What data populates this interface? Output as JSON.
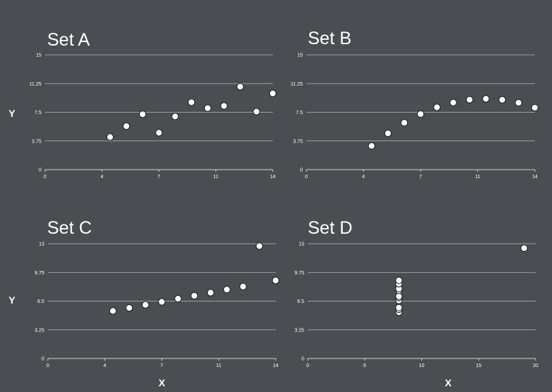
{
  "chart_data": [
    {
      "type": "scatter",
      "title": "Set A",
      "ylabel": "Y",
      "xlabel": "",
      "xlim": [
        0,
        14
      ],
      "ylim": [
        0,
        15
      ],
      "xticks": [
        "0",
        "4",
        "7",
        "11",
        "14"
      ],
      "xtick_values": [
        0,
        3.5,
        7,
        10.5,
        14
      ],
      "yticks": [
        "0",
        "3.75",
        "7.5",
        "11.25",
        "15"
      ],
      "ytick_values": [
        0,
        3.75,
        7.5,
        11.25,
        15
      ],
      "grid": true,
      "points": [
        [
          4,
          4.26
        ],
        [
          5,
          5.68
        ],
        [
          6,
          7.24
        ],
        [
          7,
          4.82
        ],
        [
          8,
          6.95
        ],
        [
          9,
          8.81
        ],
        [
          10,
          8.04
        ],
        [
          11,
          8.33
        ],
        [
          12,
          10.84
        ],
        [
          13,
          7.58
        ],
        [
          14,
          9.96
        ]
      ]
    },
    {
      "type": "scatter",
      "title": "Set B",
      "ylabel": "",
      "xlabel": "",
      "xlim": [
        0,
        14
      ],
      "ylim": [
        0,
        15
      ],
      "xticks": [
        "0",
        "4",
        "7",
        "11",
        "14"
      ],
      "xtick_values": [
        0,
        3.5,
        7,
        10.5,
        14
      ],
      "yticks": [
        "0",
        "3.75",
        "7.5",
        "11.25",
        "15"
      ],
      "ytick_values": [
        0,
        3.75,
        7.5,
        11.25,
        15
      ],
      "grid": true,
      "points": [
        [
          4,
          3.1
        ],
        [
          5,
          4.74
        ],
        [
          6,
          6.13
        ],
        [
          7,
          7.26
        ],
        [
          8,
          8.14
        ],
        [
          9,
          8.77
        ],
        [
          10,
          9.14
        ],
        [
          11,
          9.26
        ],
        [
          12,
          9.13
        ],
        [
          13,
          8.74
        ],
        [
          14,
          8.1
        ]
      ]
    },
    {
      "type": "scatter",
      "title": "Set C",
      "ylabel": "Y",
      "xlabel": "X",
      "xlim": [
        0,
        14
      ],
      "ylim": [
        0,
        13
      ],
      "xticks": [
        "0",
        "4",
        "7",
        "11",
        "14"
      ],
      "xtick_values": [
        0,
        3.5,
        7,
        10.5,
        14
      ],
      "yticks": [
        "0",
        "3.25",
        "6.5",
        "9.75",
        "13"
      ],
      "ytick_values": [
        0,
        3.25,
        6.5,
        9.75,
        13
      ],
      "grid": true,
      "points": [
        [
          4,
          5.39
        ],
        [
          5,
          5.73
        ],
        [
          6,
          6.08
        ],
        [
          7,
          6.42
        ],
        [
          8,
          6.77
        ],
        [
          9,
          7.11
        ],
        [
          10,
          7.46
        ],
        [
          11,
          7.81
        ],
        [
          12,
          8.15
        ],
        [
          13,
          12.74
        ],
        [
          14,
          8.84
        ]
      ]
    },
    {
      "type": "scatter",
      "title": "Set D",
      "ylabel": "",
      "xlabel": "X",
      "xlim": [
        0,
        20
      ],
      "ylim": [
        0,
        13
      ],
      "xticks": [
        "0",
        "5",
        "10",
        "15",
        "20"
      ],
      "xtick_values": [
        0,
        5,
        10,
        15,
        20
      ],
      "yticks": [
        "0",
        "3.25",
        "6.5",
        "9.75",
        "13"
      ],
      "ytick_values": [
        0,
        3.25,
        6.5,
        9.75,
        13
      ],
      "grid": true,
      "points": [
        [
          8,
          5.25
        ],
        [
          8,
          5.56
        ],
        [
          8,
          5.76
        ],
        [
          8,
          6.58
        ],
        [
          8,
          6.89
        ],
        [
          8,
          7.04
        ],
        [
          8,
          7.71
        ],
        [
          8,
          7.91
        ],
        [
          8,
          8.47
        ],
        [
          8,
          8.84
        ],
        [
          19,
          12.5
        ]
      ]
    }
  ],
  "style": {
    "background": "#4a4d52",
    "gridline": "#b8babd",
    "axis": "#d0d2d4",
    "marker_fill": "#ffffff",
    "marker_stroke": "#1a1a1a",
    "text": "#ffffff"
  }
}
